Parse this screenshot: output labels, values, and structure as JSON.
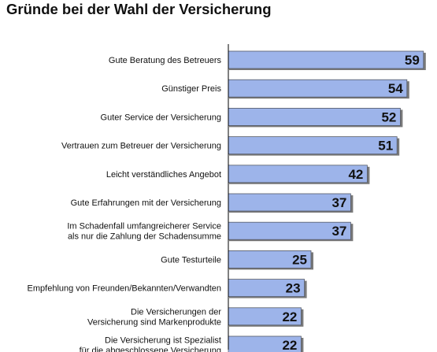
{
  "chart_data": {
    "type": "bar",
    "orientation": "horizontal",
    "title": "Gründe bei der Wahl der Versicherung",
    "categories": [
      [
        "Gute Beratung des Betreuers"
      ],
      [
        "Günstiger Preis"
      ],
      [
        "Guter Service der Versicherung"
      ],
      [
        "Vertrauen zum Betreuer der Versicherung"
      ],
      [
        "Leicht verständliches Angebot"
      ],
      [
        "Gute Erfahrungen mit der Versicherung"
      ],
      [
        "Im Schadenfall umfangreicherer Service",
        "als nur die Zahlung der Schadensumme"
      ],
      [
        "Gute Testurteile"
      ],
      [
        "Empfehlung von Freunden/Bekannten/Verwandten"
      ],
      [
        "Die Versicherungen der",
        "Versicherung sind Markenprodukte"
      ],
      [
        "Die Versicherung ist Spezialist",
        "für die abgeschlossene Versicherung"
      ]
    ],
    "values": [
      59,
      54,
      52,
      51,
      42,
      37,
      37,
      25,
      23,
      22,
      22
    ],
    "xlim": [
      0,
      60
    ],
    "grid": false,
    "legend": "none",
    "bar_color": "#9db4ea",
    "bar_shadow_color": "#7a7a7a",
    "axis_color": "#000000"
  }
}
